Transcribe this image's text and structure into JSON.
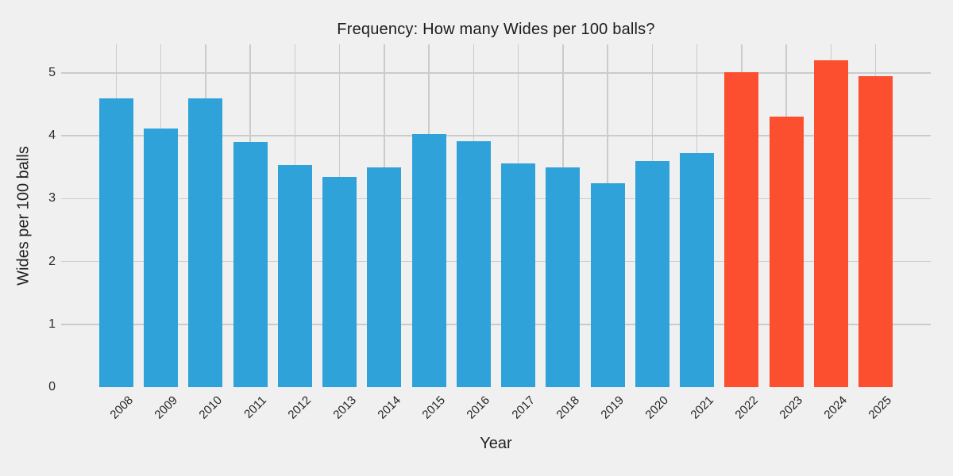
{
  "figure": {
    "background_color": "#f0f0f0",
    "gridline_color": "#cbcbcb",
    "text_color": "#222222"
  },
  "chart_data": {
    "type": "bar",
    "title": "Frequency: How many Wides per 100 balls?",
    "xlabel": "Year",
    "ylabel": "Wides per 100 balls",
    "categories": [
      "2008",
      "2009",
      "2010",
      "2011",
      "2012",
      "2013",
      "2014",
      "2015",
      "2016",
      "2017",
      "2018",
      "2019",
      "2020",
      "2021",
      "2022",
      "2023",
      "2024",
      "2025"
    ],
    "values": [
      4.6,
      4.12,
      4.6,
      3.9,
      3.53,
      3.34,
      3.5,
      4.03,
      3.92,
      3.56,
      3.5,
      3.25,
      3.6,
      3.73,
      5.01,
      4.3,
      5.2,
      4.95
    ],
    "bar_colors": [
      "#30a2da",
      "#30a2da",
      "#30a2da",
      "#30a2da",
      "#30a2da",
      "#30a2da",
      "#30a2da",
      "#30a2da",
      "#30a2da",
      "#30a2da",
      "#30a2da",
      "#30a2da",
      "#30a2da",
      "#30a2da",
      "#fc4f30",
      "#fc4f30",
      "#fc4f30",
      "#fc4f30"
    ],
    "series_colors": {
      "default_bar": "#30a2da",
      "highlight_bar": "#fc4f30"
    },
    "yticks": [
      0,
      1,
      2,
      3,
      4,
      5
    ],
    "ylim": [
      0,
      5.45
    ],
    "grid": true,
    "legend_position": "none"
  }
}
